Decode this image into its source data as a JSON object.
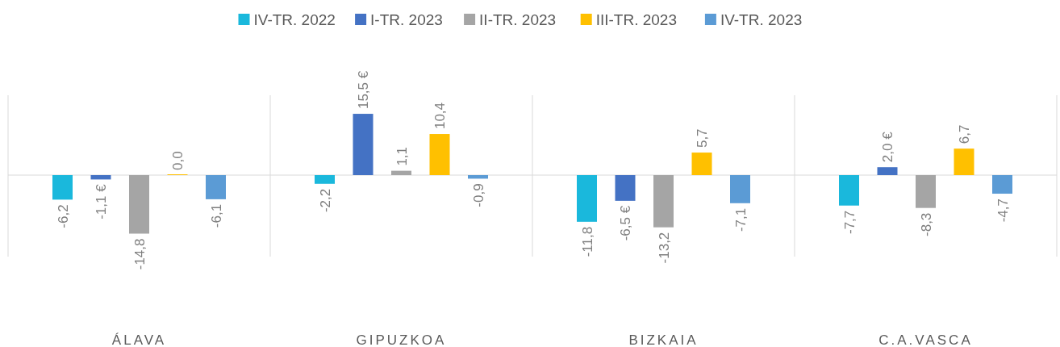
{
  "chart_data": {
    "type": "bar",
    "categories": [
      "ÁLAVA",
      "GIPUZKOA",
      "BIZKAIA",
      "C.A.VASCA"
    ],
    "ylim": [
      -20,
      20
    ],
    "legend": "top",
    "series": [
      {
        "name": "IV-TR. 2022",
        "color": "#1ab8dc",
        "values": [
          -6.2,
          -2.2,
          -11.8,
          -7.7
        ],
        "value_labels": [
          "-6,2",
          "-2,2",
          "-11,8",
          "-7,7"
        ]
      },
      {
        "name": "I-TR. 2023",
        "color": "#4472c4",
        "values": [
          -1.1,
          15.5,
          -6.5,
          2.0
        ],
        "value_labels": [
          "-1,1 €",
          "15,5 €",
          "-6,5 €",
          "2,0 €"
        ]
      },
      {
        "name": "II-TR. 2023",
        "color": "#a5a5a5",
        "values": [
          -14.8,
          1.1,
          -13.2,
          -8.3
        ],
        "value_labels": [
          "-14,8",
          "1,1",
          "-13,2",
          "-8,3"
        ]
      },
      {
        "name": "III-TR. 2023",
        "color": "#ffc000",
        "values": [
          0.0,
          10.4,
          5.7,
          6.7
        ],
        "value_labels": [
          "0,0",
          "10,4",
          "5,7",
          "6,7"
        ]
      },
      {
        "name": "IV-TR. 2023",
        "color": "#5b9bd5",
        "values": [
          -6.1,
          -0.9,
          -7.1,
          -4.7
        ],
        "value_labels": [
          "-6,1",
          "-0,9",
          "-7,1",
          "-4,7"
        ]
      }
    ]
  }
}
